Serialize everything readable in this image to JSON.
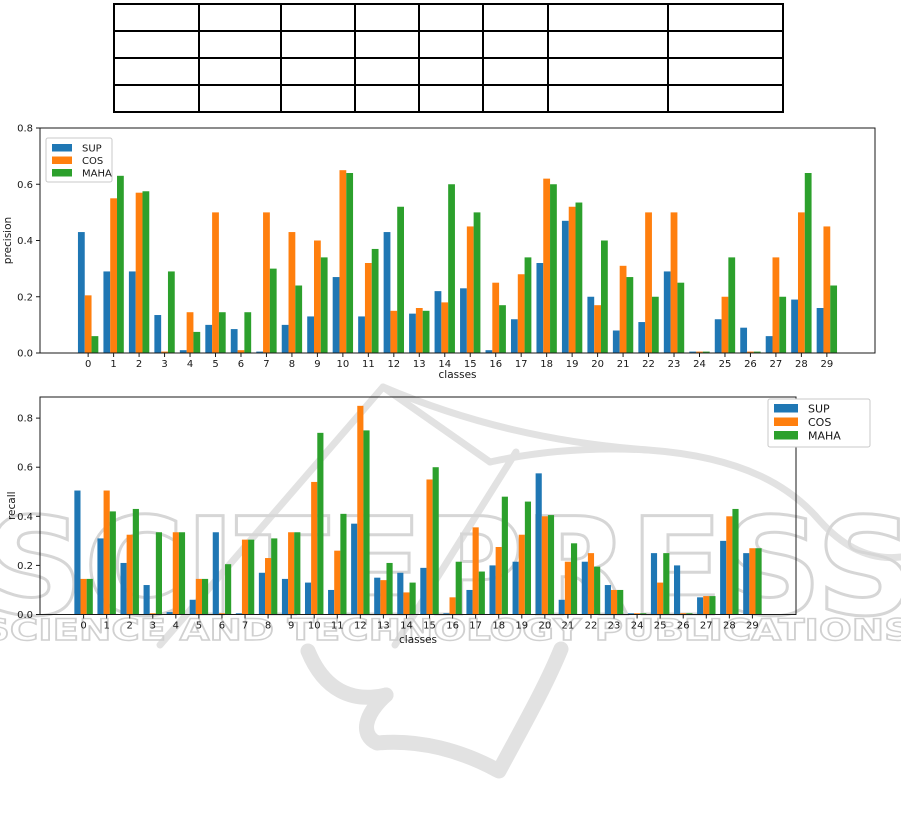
{
  "table": {
    "row_count": 4,
    "col_count": 8,
    "cells": []
  },
  "watermark": {
    "title": "SCITEPRESS",
    "subtitle": "SCIENCE AND TECHNOLOGY PUBLICATIONS",
    "color": "#d6d6d6"
  },
  "chart_data": [
    {
      "type": "bar",
      "title": "",
      "xlabel": "classes",
      "ylabel": "precision",
      "categories": [
        "0",
        "1",
        "2",
        "3",
        "4",
        "5",
        "6",
        "7",
        "8",
        "9",
        "10",
        "11",
        "12",
        "13",
        "14",
        "15",
        "16",
        "17",
        "18",
        "19",
        "20",
        "21",
        "22",
        "23",
        "24",
        "25",
        "26",
        "27",
        "28",
        "29"
      ],
      "series": [
        {
          "name": "SUP",
          "color": "#1f77b4",
          "values": [
            0.43,
            0.29,
            0.29,
            0.135,
            0.01,
            0.1,
            0.085,
            0.005,
            0.1,
            0.13,
            0.27,
            0.13,
            0.43,
            0.14,
            0.22,
            0.23,
            0.01,
            0.12,
            0.32,
            0.47,
            0.2,
            0.08,
            0.11,
            0.29,
            0.005,
            0.12,
            0.09,
            0.06,
            0.19,
            0.16
          ]
        },
        {
          "name": "COS",
          "color": "#ff7f0e",
          "values": [
            0.205,
            0.55,
            0.57,
            0.005,
            0.145,
            0.5,
            0.01,
            0.5,
            0.43,
            0.4,
            0.65,
            0.32,
            0.15,
            0.16,
            0.18,
            0.45,
            0.25,
            0.28,
            0.62,
            0.52,
            0.17,
            0.31,
            0.5,
            0.5,
            0.005,
            0.2,
            0.005,
            0.34,
            0.5,
            0.45
          ]
        },
        {
          "name": "MAHA",
          "color": "#2ca02c",
          "values": [
            0.06,
            0.63,
            0.575,
            0.29,
            0.075,
            0.145,
            0.145,
            0.3,
            0.24,
            0.34,
            0.64,
            0.37,
            0.52,
            0.15,
            0.6,
            0.5,
            0.17,
            0.34,
            0.6,
            0.535,
            0.4,
            0.27,
            0.2,
            0.25,
            0.005,
            0.34,
            0.005,
            0.2,
            0.64,
            0.24
          ]
        }
      ],
      "ylim": [
        0,
        0.8
      ],
      "yticks": [
        0.0,
        0.2,
        0.4,
        0.6,
        0.8
      ],
      "ytick_labels": [
        "0.0",
        "0.2",
        "0.4",
        "0.6",
        "0.8"
      ],
      "grid": false,
      "legend_position": "upper-left"
    },
    {
      "type": "bar",
      "title": "",
      "xlabel": "classes",
      "ylabel": "recall",
      "categories": [
        "0",
        "1",
        "2",
        "3",
        "4",
        "5",
        "6",
        "7",
        "8",
        "9",
        "10",
        "11",
        "12",
        "13",
        "14",
        "15",
        "16",
        "17",
        "18",
        "19",
        "20",
        "21",
        "22",
        "23",
        "24",
        "25",
        "26",
        "27",
        "28",
        "29"
      ],
      "series": [
        {
          "name": "SUP",
          "color": "#1f77b4",
          "values": [
            0.505,
            0.31,
            0.21,
            0.12,
            0.01,
            0.06,
            0.335,
            0.005,
            0.17,
            0.145,
            0.13,
            0.1,
            0.37,
            0.15,
            0.17,
            0.19,
            0.005,
            0.1,
            0.2,
            0.215,
            0.575,
            0.06,
            0.215,
            0.12,
            0.005,
            0.25,
            0.2,
            0.07,
            0.3,
            0.25
          ]
        },
        {
          "name": "COS",
          "color": "#ff7f0e",
          "values": [
            0.145,
            0.505,
            0.325,
            0.005,
            0.335,
            0.145,
            0.005,
            0.305,
            0.23,
            0.335,
            0.54,
            0.26,
            0.85,
            0.14,
            0.09,
            0.55,
            0.07,
            0.355,
            0.275,
            0.325,
            0.4,
            0.215,
            0.25,
            0.1,
            0.005,
            0.13,
            0.005,
            0.075,
            0.4,
            0.27
          ]
        },
        {
          "name": "MAHA",
          "color": "#2ca02c",
          "values": [
            0.145,
            0.42,
            0.43,
            0.335,
            0.335,
            0.145,
            0.205,
            0.305,
            0.31,
            0.335,
            0.74,
            0.41,
            0.75,
            0.21,
            0.13,
            0.6,
            0.215,
            0.175,
            0.48,
            0.46,
            0.405,
            0.29,
            0.195,
            0.1,
            0.005,
            0.25,
            0.005,
            0.075,
            0.43,
            0.27
          ]
        }
      ],
      "ylim": [
        0,
        0.886
      ],
      "yticks": [
        0.0,
        0.2,
        0.4,
        0.6,
        0.8
      ],
      "ytick_labels": [
        "0.0",
        "0.2",
        "0.4",
        "0.6",
        "0.8"
      ],
      "grid": false,
      "legend_position": "upper-right"
    }
  ]
}
